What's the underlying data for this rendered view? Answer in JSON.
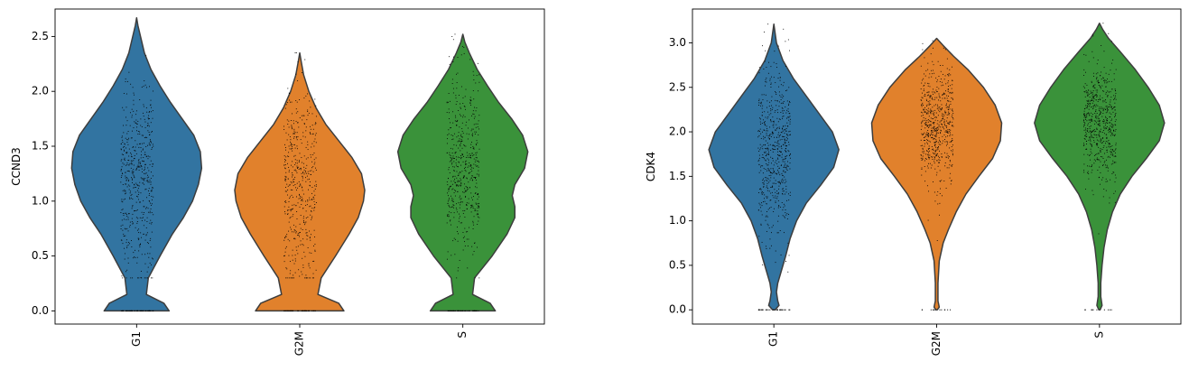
{
  "chart_data": [
    {
      "type": "violin",
      "ylabel": "CCND3",
      "xlabel": "",
      "categories": [
        "G1",
        "G2M",
        "S"
      ],
      "ylim": [
        -0.12,
        2.75
      ],
      "yticks": [
        0.0,
        0.5,
        1.0,
        1.5,
        2.0,
        2.5
      ],
      "ytick_labels": [
        "0.0",
        "0.5",
        "1.0",
        "1.5",
        "2.0",
        "2.5"
      ],
      "grid": false,
      "legend": "none",
      "colors": [
        "#3274a1",
        "#e1812c",
        "#3a923a"
      ],
      "series": [
        {
          "category": "G1",
          "max": 2.67,
          "density_y": [
            0.0,
            0.07,
            0.15,
            0.3,
            0.5,
            0.7,
            0.85,
            1.0,
            1.15,
            1.3,
            1.45,
            1.6,
            1.75,
            1.9,
            2.05,
            2.2,
            2.35,
            2.5,
            2.6,
            2.67
          ],
          "density_w": [
            0.5,
            0.42,
            0.15,
            0.18,
            0.36,
            0.55,
            0.72,
            0.86,
            0.95,
            1.0,
            0.98,
            0.88,
            0.7,
            0.52,
            0.36,
            0.22,
            0.12,
            0.06,
            0.02,
            0.0
          ],
          "jitter": {
            "n_zero": 45,
            "n": 520,
            "mean": 1.2,
            "sd": 0.42,
            "min": 0.3,
            "max": 2.67
          }
        },
        {
          "category": "G2M",
          "max": 2.35,
          "density_y": [
            0.0,
            0.07,
            0.15,
            0.3,
            0.5,
            0.7,
            0.85,
            1.0,
            1.1,
            1.25,
            1.4,
            1.55,
            1.7,
            1.85,
            2.0,
            2.15,
            2.28,
            2.35
          ],
          "density_w": [
            0.68,
            0.6,
            0.28,
            0.33,
            0.55,
            0.76,
            0.9,
            0.98,
            1.0,
            0.95,
            0.8,
            0.6,
            0.4,
            0.25,
            0.14,
            0.06,
            0.02,
            0.0
          ],
          "jitter": {
            "n_zero": 45,
            "n": 480,
            "mean": 1.1,
            "sd": 0.45,
            "min": 0.3,
            "max": 2.35
          }
        },
        {
          "category": "S",
          "max": 2.52,
          "density_y": [
            0.0,
            0.07,
            0.15,
            0.3,
            0.5,
            0.7,
            0.85,
            0.95,
            1.05,
            1.15,
            1.3,
            1.45,
            1.6,
            1.75,
            1.9,
            2.05,
            2.2,
            2.35,
            2.45,
            2.52
          ],
          "density_w": [
            0.5,
            0.42,
            0.15,
            0.18,
            0.45,
            0.68,
            0.8,
            0.8,
            0.76,
            0.8,
            0.95,
            1.0,
            0.92,
            0.75,
            0.55,
            0.38,
            0.22,
            0.1,
            0.03,
            0.0
          ],
          "jitter": {
            "n_zero": 40,
            "n": 520,
            "mean": 1.35,
            "sd": 0.42,
            "min": 0.3,
            "max": 2.52
          }
        }
      ]
    },
    {
      "type": "violin",
      "ylabel": "CDK4",
      "xlabel": "",
      "categories": [
        "G1",
        "G2M",
        "S"
      ],
      "ylim": [
        -0.16,
        3.38
      ],
      "yticks": [
        0.0,
        0.5,
        1.0,
        1.5,
        2.0,
        2.5,
        3.0
      ],
      "ytick_labels": [
        "0.0",
        "0.5",
        "1.0",
        "1.5",
        "2.0",
        "2.5",
        "3.0"
      ],
      "grid": false,
      "legend": "none",
      "colors": [
        "#3274a1",
        "#e1812c",
        "#3a923a"
      ],
      "series": [
        {
          "category": "G1",
          "max": 3.21,
          "density_y": [
            0.0,
            0.05,
            0.1,
            0.2,
            0.3,
            0.45,
            0.6,
            0.8,
            1.0,
            1.2,
            1.4,
            1.6,
            1.8,
            2.0,
            2.2,
            2.4,
            2.6,
            2.8,
            3.0,
            3.21
          ],
          "density_w": [
            0.02,
            0.08,
            0.06,
            0.04,
            0.06,
            0.12,
            0.18,
            0.25,
            0.35,
            0.5,
            0.72,
            0.92,
            1.0,
            0.9,
            0.7,
            0.5,
            0.3,
            0.14,
            0.04,
            0.0
          ],
          "jitter": {
            "n_zero": 30,
            "n": 600,
            "mean": 1.8,
            "sd": 0.45,
            "min": 0.4,
            "max": 3.21
          }
        },
        {
          "category": "G2M",
          "max": 3.05,
          "density_y": [
            0.0,
            0.03,
            0.1,
            0.3,
            0.55,
            0.75,
            0.9,
            1.1,
            1.3,
            1.5,
            1.7,
            1.9,
            2.1,
            2.3,
            2.5,
            2.7,
            2.85,
            2.97,
            3.05
          ],
          "density_w": [
            0.01,
            0.04,
            0.02,
            0.02,
            0.04,
            0.1,
            0.18,
            0.3,
            0.45,
            0.65,
            0.86,
            0.98,
            1.0,
            0.9,
            0.72,
            0.48,
            0.26,
            0.1,
            0.0
          ],
          "jitter": {
            "n_zero": 12,
            "n": 600,
            "mean": 2.1,
            "sd": 0.35,
            "min": 0.75,
            "max": 3.05
          }
        },
        {
          "category": "S",
          "max": 3.22,
          "density_y": [
            0.0,
            0.05,
            0.15,
            0.3,
            0.5,
            0.7,
            0.9,
            1.1,
            1.3,
            1.5,
            1.7,
            1.9,
            2.1,
            2.3,
            2.5,
            2.7,
            2.9,
            3.05,
            3.15,
            3.22
          ],
          "density_w": [
            0.01,
            0.04,
            0.02,
            0.02,
            0.04,
            0.07,
            0.12,
            0.2,
            0.32,
            0.5,
            0.72,
            0.92,
            1.0,
            0.92,
            0.75,
            0.55,
            0.32,
            0.14,
            0.05,
            0.0
          ],
          "jitter": {
            "n_zero": 10,
            "n": 600,
            "mean": 2.15,
            "sd": 0.35,
            "min": 0.8,
            "max": 3.22
          }
        }
      ]
    }
  ]
}
